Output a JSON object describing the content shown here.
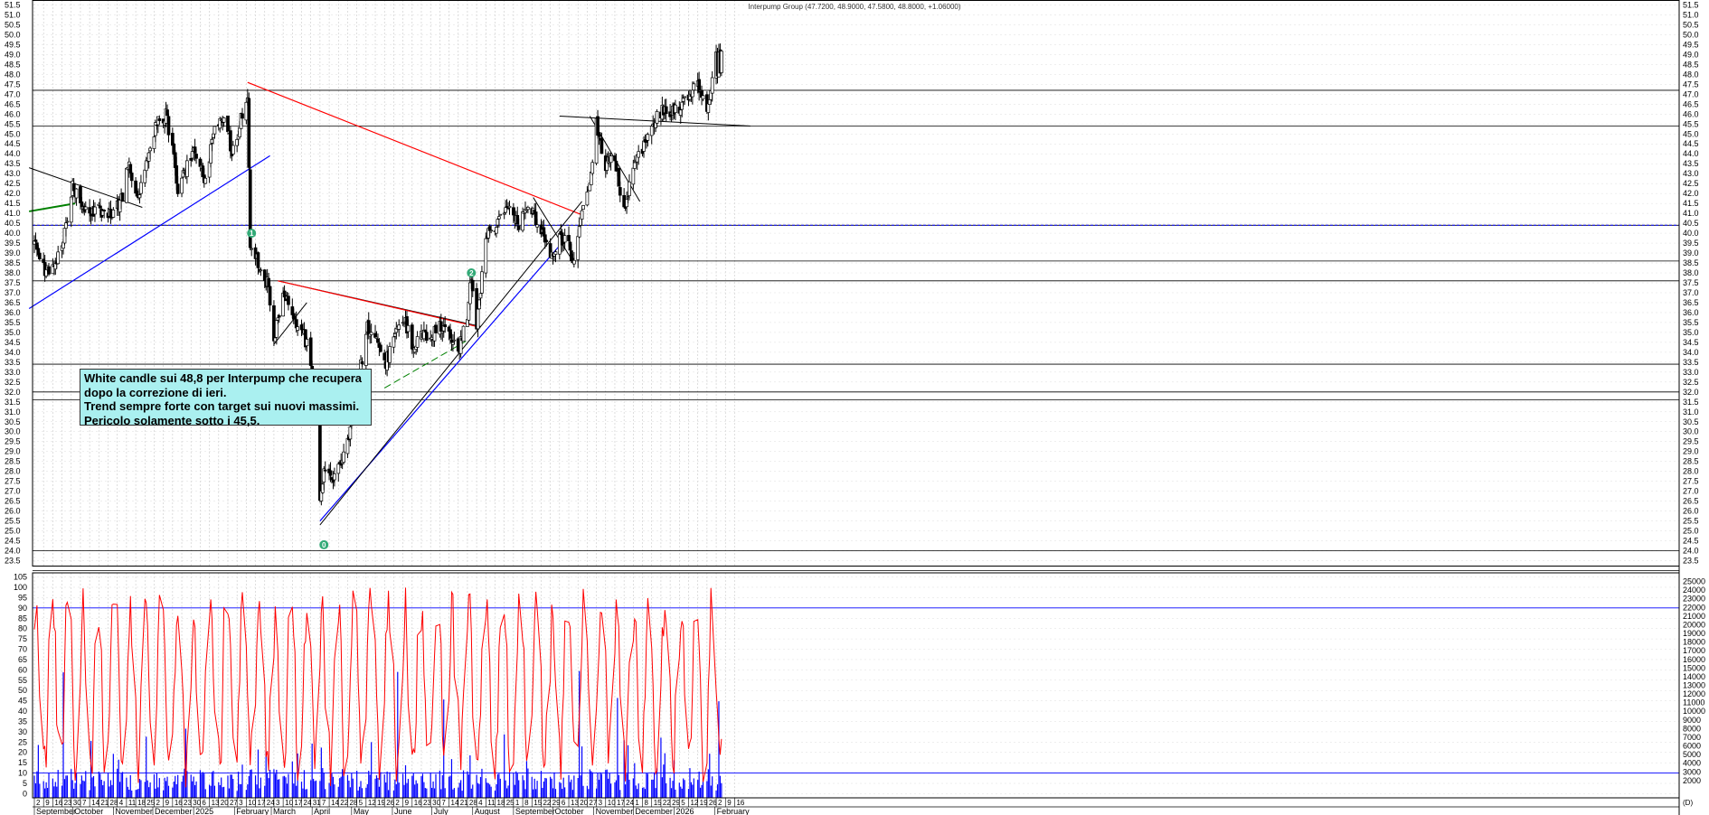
{
  "chart_data": {
    "type": "candlestick",
    "title": "Interpump Group (47.7200, 48.9000, 47.5800, 48.8000, +1.06000)",
    "price_axis": {
      "ylim": [
        23.25,
        51.75
      ],
      "ticks": [
        23.5,
        24.0,
        24.5,
        25.0,
        25.5,
        26.0,
        26.5,
        27.0,
        27.5,
        28.0,
        28.5,
        29.0,
        29.5,
        30.0,
        30.5,
        31.0,
        31.5,
        32.0,
        32.5,
        33.0,
        33.5,
        34.0,
        34.5,
        35.0,
        35.5,
        36.0,
        36.5,
        37.0,
        37.5,
        38.0,
        38.5,
        39.0,
        39.5,
        40.0,
        40.5,
        41.0,
        41.5,
        42.0,
        42.5,
        43.0,
        43.5,
        44.0,
        44.5,
        45.0,
        45.5,
        46.0,
        46.5,
        47.0,
        47.5,
        48.0,
        48.5,
        49.0,
        49.5,
        50.0,
        50.5,
        51.0,
        51.5
      ]
    },
    "oscillator_axis": {
      "ylim": [
        -2,
        107
      ],
      "ticks": [
        0,
        5,
        10,
        15,
        20,
        25,
        30,
        35,
        40,
        45,
        50,
        55,
        60,
        65,
        70,
        75,
        80,
        85,
        90,
        95,
        100,
        105
      ],
      "levels": [
        10,
        90
      ]
    },
    "volume_axis": {
      "ylim": [
        0,
        26000
      ],
      "ticks": [
        2000,
        3000,
        4000,
        5000,
        6000,
        7000,
        8000,
        9000,
        10000,
        11000,
        12000,
        13000,
        14000,
        15000,
        16000,
        17000,
        18000,
        19000,
        20000,
        21000,
        22000,
        23000,
        24000,
        25000
      ]
    },
    "x_day_labels": [
      "2",
      "9",
      "16",
      "23",
      "30",
      "7",
      "14",
      "21",
      "28",
      "4",
      "11",
      "18",
      "25",
      "2",
      "9",
      "16",
      "23",
      "30",
      "6",
      "13",
      "20",
      "27",
      "3",
      "10",
      "17",
      "24",
      "3",
      "10",
      "17",
      "24",
      "31",
      "7",
      "14",
      "22",
      "28",
      "5",
      "12",
      "19",
      "26",
      "2",
      "9",
      "16",
      "23",
      "30",
      "7",
      "14",
      "21",
      "28",
      "4",
      "11",
      "18",
      "25",
      "1",
      "8",
      "15",
      "22",
      "29",
      "6",
      "13",
      "20",
      "27",
      "3",
      "10",
      "17",
      "24",
      "1",
      "8",
      "15",
      "22",
      "29",
      "5",
      "12",
      "19",
      "26",
      "2",
      "9",
      "16"
    ],
    "x_month_labels": [
      "September",
      "October",
      "November",
      "December",
      "2025",
      "February",
      "March",
      "April",
      "May",
      "June",
      "July",
      "August",
      "September",
      "October",
      "November",
      "December",
      "2026",
      "February"
    ],
    "x_day_tag": "(D)",
    "horizontal_levels": [
      47.2,
      45.4,
      40.4,
      38.6,
      37.6,
      33.4,
      32.0,
      31.6,
      24.0,
      23.0
    ],
    "markers": [
      "0",
      "1",
      "2"
    ],
    "swing_prices": [
      {
        "date": "2024-09-02",
        "close": 39.5
      },
      {
        "date": "2024-09-10",
        "close": 38.0
      },
      {
        "date": "2024-09-17",
        "close": 38.2
      },
      {
        "date": "2024-09-24",
        "close": 39.6
      },
      {
        "date": "2024-10-01",
        "close": 42.4
      },
      {
        "date": "2024-10-10",
        "close": 41.0
      },
      {
        "date": "2024-10-20",
        "close": 41.2
      },
      {
        "date": "2024-10-31",
        "close": 40.8
      },
      {
        "date": "2024-11-08",
        "close": 41.8
      },
      {
        "date": "2024-11-12",
        "close": 43.6
      },
      {
        "date": "2024-11-20",
        "close": 41.6
      },
      {
        "date": "2024-11-27",
        "close": 44.0
      },
      {
        "date": "2024-12-05",
        "close": 45.7
      },
      {
        "date": "2024-12-11",
        "close": 46.0
      },
      {
        "date": "2024-12-18",
        "close": 43.5
      },
      {
        "date": "2024-12-20",
        "close": 42.2
      },
      {
        "date": "2025-01-02",
        "close": 44.3
      },
      {
        "date": "2025-01-10",
        "close": 42.5
      },
      {
        "date": "2025-01-17",
        "close": 45.4
      },
      {
        "date": "2025-01-26",
        "close": 45.9
      },
      {
        "date": "2025-01-30",
        "close": 44.0
      },
      {
        "date": "2025-02-07",
        "close": 46.0
      },
      {
        "date": "2025-02-11",
        "close": 47.0
      },
      {
        "date": "2025-02-13",
        "close": 39.5
      },
      {
        "date": "2025-02-17",
        "close": 38.9
      },
      {
        "date": "2025-02-27",
        "close": 37.3
      },
      {
        "date": "2025-03-03",
        "close": 34.6
      },
      {
        "date": "2025-03-10",
        "close": 37.0
      },
      {
        "date": "2025-03-19",
        "close": 35.6
      },
      {
        "date": "2025-03-26",
        "close": 34.9
      },
      {
        "date": "2025-04-01",
        "close": 33.2
      },
      {
        "date": "2025-04-04",
        "close": 31.5
      },
      {
        "date": "2025-04-07",
        "close": 26.5
      },
      {
        "date": "2025-04-09",
        "close": 27.4
      },
      {
        "date": "2025-04-11",
        "close": 28.3
      },
      {
        "date": "2025-04-17",
        "close": 27.8
      },
      {
        "date": "2025-04-23",
        "close": 28.6
      },
      {
        "date": "2025-04-29",
        "close": 29.5
      },
      {
        "date": "2025-05-05",
        "close": 32.2
      },
      {
        "date": "2025-05-13",
        "close": 35.3
      },
      {
        "date": "2025-05-20",
        "close": 34.8
      },
      {
        "date": "2025-05-26",
        "close": 33.3
      },
      {
        "date": "2025-06-02",
        "close": 34.6
      },
      {
        "date": "2025-06-10",
        "close": 35.8
      },
      {
        "date": "2025-06-16",
        "close": 34.2
      },
      {
        "date": "2025-06-24",
        "close": 34.8
      },
      {
        "date": "2025-07-01",
        "close": 34.8
      },
      {
        "date": "2025-07-07",
        "close": 35.5
      },
      {
        "date": "2025-07-14",
        "close": 34.8
      },
      {
        "date": "2025-07-22",
        "close": 34.3
      },
      {
        "date": "2025-07-28",
        "close": 36.0
      },
      {
        "date": "2025-07-31",
        "close": 37.8
      },
      {
        "date": "2025-08-04",
        "close": 35.3
      },
      {
        "date": "2025-08-07",
        "close": 37.0
      },
      {
        "date": "2025-08-11",
        "close": 40.0
      },
      {
        "date": "2025-08-20",
        "close": 40.4
      },
      {
        "date": "2025-08-27",
        "close": 41.3
      },
      {
        "date": "2025-09-05",
        "close": 40.5
      },
      {
        "date": "2025-09-12",
        "close": 41.5
      },
      {
        "date": "2025-09-22",
        "close": 40.2
      },
      {
        "date": "2025-09-29",
        "close": 38.7
      },
      {
        "date": "2025-10-06",
        "close": 39.8
      },
      {
        "date": "2025-10-14",
        "close": 39.3
      },
      {
        "date": "2025-10-16",
        "close": 38.5
      },
      {
        "date": "2025-10-22",
        "close": 40.6
      },
      {
        "date": "2025-10-29",
        "close": 42.2
      },
      {
        "date": "2025-11-03",
        "close": 45.5
      },
      {
        "date": "2025-11-10",
        "close": 43.4
      },
      {
        "date": "2025-11-17",
        "close": 43.8
      },
      {
        "date": "2025-11-24",
        "close": 41.0
      },
      {
        "date": "2025-12-01",
        "close": 43.2
      },
      {
        "date": "2025-12-08",
        "close": 44.2
      },
      {
        "date": "2025-12-15",
        "close": 45.5
      },
      {
        "date": "2025-12-22",
        "close": 46.1
      },
      {
        "date": "2026-01-05",
        "close": 46.3
      },
      {
        "date": "2026-01-12",
        "close": 46.8
      },
      {
        "date": "2026-01-19",
        "close": 47.5
      },
      {
        "date": "2026-01-26",
        "close": 46.0
      },
      {
        "date": "2026-02-02",
        "close": 48.8
      }
    ]
  },
  "annotation": {
    "lines": [
      "White candle sui 48,8 per Interpump che recupera",
      "dopo la correzione di ieri.",
      "Trend sempre forte con target sui nuovi massimi.",
      "Pericolo solamente sotto i 45,5."
    ]
  },
  "colors": {
    "candle": "#000000",
    "support_blue": "#0000ff",
    "trend_red": "#ff0000",
    "trend_green": "#008000",
    "oscillator": "#ff0000",
    "volume": "#0000ff",
    "marker": "#33aa77",
    "annotation_bg": "#aaf0f0"
  }
}
